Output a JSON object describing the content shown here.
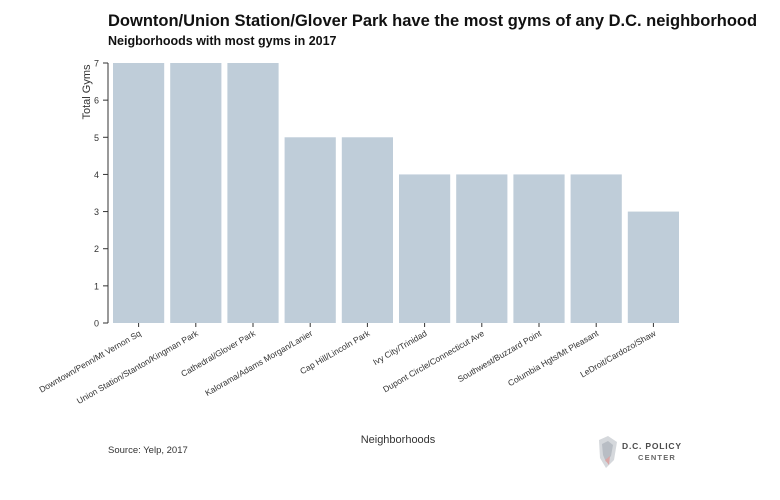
{
  "chart_data": {
    "type": "bar",
    "title": "Downton/Union Station/Glover Park have the most gyms of any D.C. neighborhood",
    "subtitle": "Neigborhoods with most gyms in 2017",
    "xlabel": "Neighborhoods",
    "ylabel": "Total Gyms",
    "ylim": [
      0,
      7
    ],
    "yticks": [
      "0",
      "1",
      "2",
      "3",
      "4",
      "5",
      "6",
      "7"
    ],
    "categories": [
      "Downtown/Penn/Mt Vernon Sq",
      "Union Station/Stanton/Kingman Park",
      "Cathedral/Glover Park",
      "Kalorama/Adams Morgan/Lanier",
      "Cap Hill/Lincoln Park",
      "Ivy City/Trinidad",
      "Dupont Circle/Connecticut Ave",
      "Southwest/Buzzard Point",
      "Columbia Hgts/Mt Pleasant",
      "LeDroit/Cardozo/Shaw"
    ],
    "values": [
      7,
      7,
      7,
      5,
      5,
      4,
      4,
      4,
      4,
      3
    ],
    "bar_color": "#bfcdd9",
    "grid": false,
    "legend": "none"
  },
  "source": "Source: Yelp, 2017",
  "logo": {
    "line1": "D.C. POLICY",
    "line2": "CENTER"
  }
}
